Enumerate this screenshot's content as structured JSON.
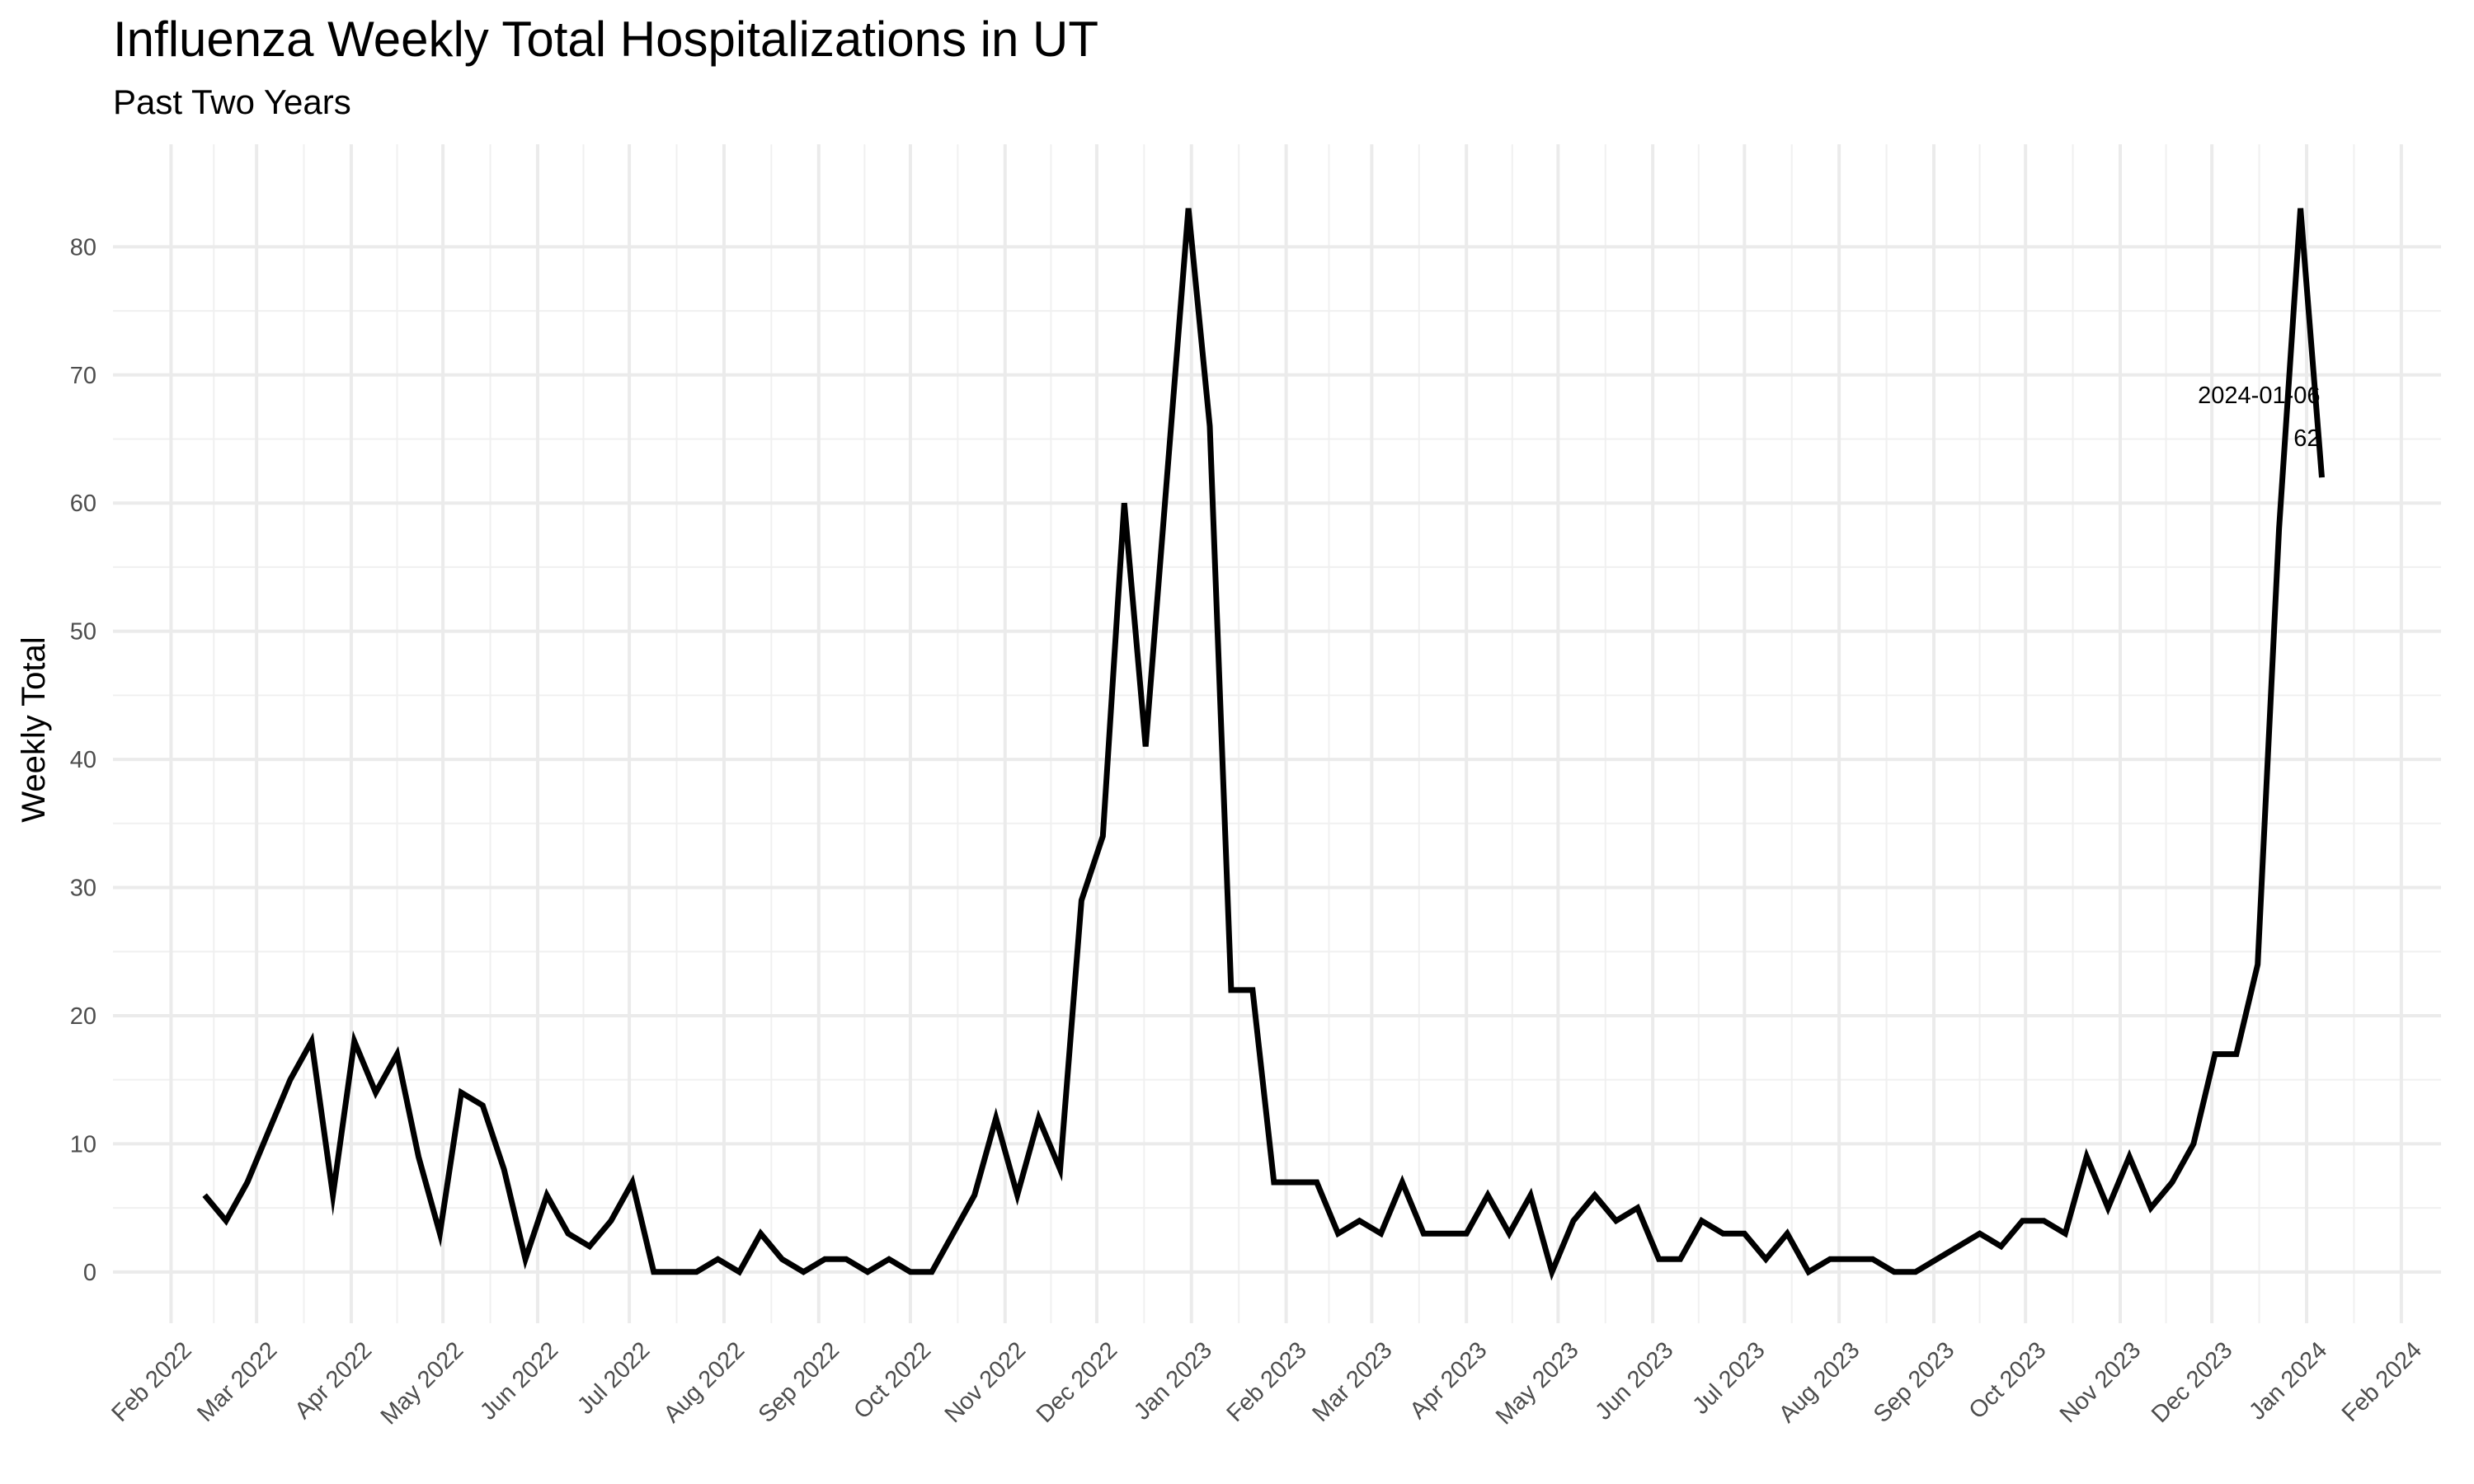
{
  "chart_data": {
    "type": "line",
    "title": "Influenza Weekly Total Hospitalizations in UT",
    "subtitle": "Past Two Years",
    "xlabel": "",
    "ylabel": "Weekly Total",
    "ylim": [
      -4,
      88
    ],
    "xlim": [
      "2022-01-13",
      "2024-02-14"
    ],
    "grid": true,
    "legend": "none",
    "line_color": "#000000",
    "y_ticks": [
      0,
      10,
      20,
      30,
      40,
      50,
      60,
      70,
      80
    ],
    "x_ticks": [
      {
        "date": "2022-02-01",
        "label": "Feb 2022"
      },
      {
        "date": "2022-03-01",
        "label": "Mar 2022"
      },
      {
        "date": "2022-04-01",
        "label": "Apr 2022"
      },
      {
        "date": "2022-05-01",
        "label": "May 2022"
      },
      {
        "date": "2022-06-01",
        "label": "Jun 2022"
      },
      {
        "date": "2022-07-01",
        "label": "Jul 2022"
      },
      {
        "date": "2022-08-01",
        "label": "Aug 2022"
      },
      {
        "date": "2022-09-01",
        "label": "Sep 2022"
      },
      {
        "date": "2022-10-01",
        "label": "Oct 2022"
      },
      {
        "date": "2022-11-01",
        "label": "Nov 2022"
      },
      {
        "date": "2022-12-01",
        "label": "Dec 2022"
      },
      {
        "date": "2023-01-01",
        "label": "Jan 2023"
      },
      {
        "date": "2023-02-01",
        "label": "Feb 2023"
      },
      {
        "date": "2023-03-01",
        "label": "Mar 2023"
      },
      {
        "date": "2023-04-01",
        "label": "Apr 2023"
      },
      {
        "date": "2023-05-01",
        "label": "May 2023"
      },
      {
        "date": "2023-06-01",
        "label": "Jun 2023"
      },
      {
        "date": "2023-07-01",
        "label": "Jul 2023"
      },
      {
        "date": "2023-08-01",
        "label": "Aug 2023"
      },
      {
        "date": "2023-09-01",
        "label": "Sep 2023"
      },
      {
        "date": "2023-10-01",
        "label": "Oct 2023"
      },
      {
        "date": "2023-11-01",
        "label": "Nov 2023"
      },
      {
        "date": "2023-12-01",
        "label": "Dec 2023"
      },
      {
        "date": "2024-01-01",
        "label": "Jan 2024"
      },
      {
        "date": "2024-02-01",
        "label": "Feb 2024"
      }
    ],
    "series": [
      {
        "x": [
          "2022-02-12",
          "2022-02-19",
          "2022-02-26",
          "2022-03-05",
          "2022-03-12",
          "2022-03-19",
          "2022-03-26",
          "2022-04-02",
          "2022-04-09",
          "2022-04-16",
          "2022-04-23",
          "2022-04-30",
          "2022-05-07",
          "2022-05-14",
          "2022-05-21",
          "2022-05-28",
          "2022-06-04",
          "2022-06-11",
          "2022-06-18",
          "2022-06-25",
          "2022-07-02",
          "2022-07-09",
          "2022-07-16",
          "2022-07-23",
          "2022-07-30",
          "2022-08-06",
          "2022-08-13",
          "2022-08-20",
          "2022-08-27",
          "2022-09-03",
          "2022-09-10",
          "2022-09-17",
          "2022-09-24",
          "2022-10-01",
          "2022-10-08",
          "2022-10-15",
          "2022-10-22",
          "2022-10-29",
          "2022-11-05",
          "2022-11-12",
          "2022-11-19",
          "2022-11-26",
          "2022-12-03",
          "2022-12-10",
          "2022-12-17",
          "2022-12-24",
          "2022-12-31",
          "2023-01-07",
          "2023-01-14",
          "2023-01-21",
          "2023-01-28",
          "2023-02-04",
          "2023-02-11",
          "2023-02-18",
          "2023-02-25",
          "2023-03-04",
          "2023-03-11",
          "2023-03-18",
          "2023-03-25",
          "2023-04-01",
          "2023-04-08",
          "2023-04-15",
          "2023-04-22",
          "2023-04-29",
          "2023-05-06",
          "2023-05-13",
          "2023-05-20",
          "2023-05-27",
          "2023-06-03",
          "2023-06-10",
          "2023-06-17",
          "2023-06-24",
          "2023-07-01",
          "2023-07-08",
          "2023-07-15",
          "2023-07-22",
          "2023-07-29",
          "2023-08-05",
          "2023-08-12",
          "2023-08-19",
          "2023-08-26",
          "2023-09-02",
          "2023-09-09",
          "2023-09-16",
          "2023-09-23",
          "2023-09-30",
          "2023-10-07",
          "2023-10-14",
          "2023-10-21",
          "2023-10-28",
          "2023-11-04",
          "2023-11-11",
          "2023-11-18",
          "2023-11-25",
          "2023-12-02",
          "2023-12-09",
          "2023-12-16",
          "2023-12-23",
          "2023-12-30",
          "2024-01-06"
        ],
        "values": [
          6,
          4,
          7,
          11,
          15,
          18,
          6,
          18,
          14,
          17,
          9,
          3,
          14,
          13,
          8,
          1,
          6,
          3,
          2,
          4,
          7,
          0,
          0,
          0,
          1,
          0,
          3,
          1,
          0,
          1,
          1,
          0,
          1,
          0,
          0,
          3,
          6,
          12,
          6,
          12,
          8,
          29,
          34,
          60,
          41,
          62,
          83,
          66,
          22,
          22,
          7,
          7,
          7,
          3,
          4,
          3,
          7,
          3,
          3,
          3,
          6,
          3,
          6,
          0,
          4,
          6,
          4,
          5,
          1,
          1,
          4,
          3,
          3,
          1,
          3,
          0,
          1,
          1,
          1,
          0,
          0,
          1,
          2,
          3,
          2,
          4,
          4,
          3,
          9,
          5,
          9,
          5,
          7,
          10,
          17,
          17,
          24,
          58,
          83,
          62
        ]
      }
    ],
    "annotations": [
      {
        "x": "2024-01-06",
        "y": 62,
        "line1": "2024-01-06",
        "line2": "62"
      }
    ]
  }
}
